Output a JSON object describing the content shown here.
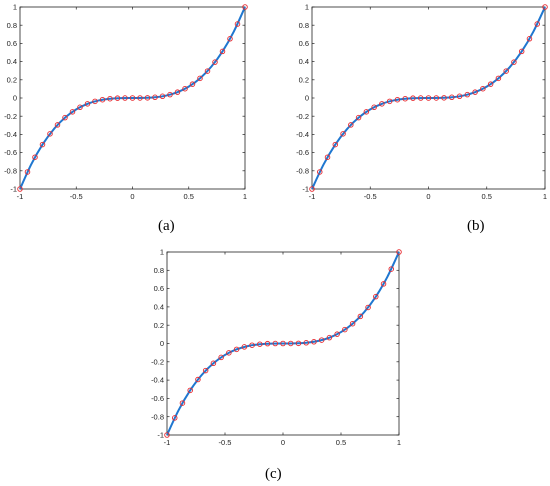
{
  "figure": {
    "panel_labels": [
      "(a)",
      "(b)",
      "(c)"
    ]
  },
  "chart_data": [
    {
      "panel": "(a)",
      "type": "line",
      "title": "",
      "xlabel": "",
      "ylabel": "",
      "xlim": [
        -1,
        1
      ],
      "ylim": [
        -1,
        1
      ],
      "xticks": [
        -1,
        -0.5,
        0,
        0.5,
        1
      ],
      "xtick_labels": [
        "-1",
        "-0.5",
        "0",
        "0.5",
        "1"
      ],
      "yticks": [
        -1,
        -0.8,
        -0.6,
        -0.4,
        -0.2,
        0,
        0.2,
        0.4,
        0.6,
        0.8,
        1
      ],
      "ytick_labels": [
        "-1",
        "-0.8",
        "-0.6",
        "-0.4",
        "-0.2",
        "0",
        "0.2",
        "0.4",
        "0.6",
        "0.8",
        "1"
      ],
      "grid": false,
      "legend": "none",
      "series": [
        {
          "style": "line",
          "color": "#1f77d0",
          "x": [
            -1,
            -0.9,
            -0.8,
            -0.7,
            -0.6,
            -0.5,
            -0.4,
            -0.3,
            -0.2,
            -0.1,
            0,
            0.1,
            0.2,
            0.3,
            0.4,
            0.5,
            0.6,
            0.7,
            0.8,
            0.9,
            1
          ],
          "y": [
            -1,
            -0.729,
            -0.512,
            -0.343,
            -0.216,
            -0.125,
            -0.064,
            -0.027,
            -0.008,
            -0.001,
            0,
            0.001,
            0.008,
            0.027,
            0.064,
            0.125,
            0.216,
            0.343,
            0.512,
            0.729,
            1
          ]
        },
        {
          "style": "markers-circle",
          "color": "#e8282e",
          "x": [
            -1,
            -0.9333,
            -0.8667,
            -0.8,
            -0.7333,
            -0.6667,
            -0.6,
            -0.5333,
            -0.4667,
            -0.4,
            -0.3333,
            -0.2667,
            -0.2,
            -0.1333,
            -0.0667,
            0,
            0.0667,
            0.1333,
            0.2,
            0.2667,
            0.3333,
            0.4,
            0.4667,
            0.5333,
            0.6,
            0.6667,
            0.7333,
            0.8,
            0.8667,
            0.9333,
            1
          ],
          "y": [
            -1,
            -0.813,
            -0.651,
            -0.512,
            -0.394,
            -0.296,
            -0.216,
            -0.152,
            -0.102,
            -0.064,
            -0.037,
            -0.019,
            -0.008,
            -0.002,
            -0.0003,
            0,
            0.0003,
            0.002,
            0.008,
            0.019,
            0.037,
            0.064,
            0.102,
            0.152,
            0.216,
            0.296,
            0.394,
            0.512,
            0.651,
            0.813,
            1
          ]
        }
      ]
    },
    {
      "panel": "(b)",
      "type": "line",
      "title": "",
      "xlabel": "",
      "ylabel": "",
      "xlim": [
        -1,
        1
      ],
      "ylim": [
        -1,
        1
      ],
      "xticks": [
        -1,
        -0.5,
        0,
        0.5,
        1
      ],
      "xtick_labels": [
        "-1",
        "-0.5",
        "0",
        "0.5",
        "1"
      ],
      "yticks": [
        -1,
        -0.8,
        -0.6,
        -0.4,
        -0.2,
        0,
        0.2,
        0.4,
        0.6,
        0.8,
        1
      ],
      "ytick_labels": [
        "-1",
        "-0.8",
        "-0.6",
        "-0.4",
        "-0.2",
        "0",
        "0.2",
        "0.4",
        "0.6",
        "0.8",
        "1"
      ],
      "grid": false,
      "legend": "none",
      "series": [
        {
          "style": "line",
          "color": "#1f77d0",
          "x": [
            -1,
            -0.9,
            -0.8,
            -0.7,
            -0.6,
            -0.5,
            -0.4,
            -0.3,
            -0.2,
            -0.1,
            0,
            0.1,
            0.2,
            0.3,
            0.4,
            0.5,
            0.6,
            0.7,
            0.8,
            0.9,
            1
          ],
          "y": [
            -1,
            -0.729,
            -0.512,
            -0.343,
            -0.216,
            -0.125,
            -0.064,
            -0.027,
            -0.008,
            -0.001,
            0,
            0.001,
            0.008,
            0.027,
            0.064,
            0.125,
            0.216,
            0.343,
            0.512,
            0.729,
            1
          ]
        },
        {
          "style": "markers-circle",
          "color": "#e8282e",
          "x": [
            -1,
            -0.9333,
            -0.8667,
            -0.8,
            -0.7333,
            -0.6667,
            -0.6,
            -0.5333,
            -0.4667,
            -0.4,
            -0.3333,
            -0.2667,
            -0.2,
            -0.1333,
            -0.0667,
            0,
            0.0667,
            0.1333,
            0.2,
            0.2667,
            0.3333,
            0.4,
            0.4667,
            0.5333,
            0.6,
            0.6667,
            0.7333,
            0.8,
            0.8667,
            0.9333,
            1
          ],
          "y": [
            -1,
            -0.813,
            -0.651,
            -0.512,
            -0.394,
            -0.296,
            -0.216,
            -0.152,
            -0.102,
            -0.064,
            -0.037,
            -0.019,
            -0.008,
            -0.002,
            -0.0003,
            0,
            0.0003,
            0.002,
            0.008,
            0.019,
            0.037,
            0.064,
            0.102,
            0.152,
            0.216,
            0.296,
            0.394,
            0.512,
            0.651,
            0.813,
            1
          ]
        }
      ]
    },
    {
      "panel": "(c)",
      "type": "line",
      "title": "",
      "xlabel": "",
      "ylabel": "",
      "xlim": [
        -1,
        1
      ],
      "ylim": [
        -1,
        1
      ],
      "xticks": [
        -1,
        -0.5,
        0,
        0.5,
        1
      ],
      "xtick_labels": [
        "-1",
        "-0.5",
        "0",
        "0.5",
        "1"
      ],
      "yticks": [
        -1,
        -0.8,
        -0.6,
        -0.4,
        -0.2,
        0,
        0.2,
        0.4,
        0.6,
        0.8,
        1
      ],
      "ytick_labels": [
        "-1",
        "-0.8",
        "-0.6",
        "-0.4",
        "-0.2",
        "0",
        "0.2",
        "0.4",
        "0.6",
        "0.8",
        "1"
      ],
      "grid": false,
      "legend": "none",
      "series": [
        {
          "style": "line",
          "color": "#1f77d0",
          "x": [
            -1,
            -0.9,
            -0.8,
            -0.7,
            -0.6,
            -0.5,
            -0.4,
            -0.3,
            -0.2,
            -0.1,
            0,
            0.1,
            0.2,
            0.3,
            0.4,
            0.5,
            0.6,
            0.7,
            0.8,
            0.9,
            1
          ],
          "y": [
            -1,
            -0.729,
            -0.512,
            -0.343,
            -0.216,
            -0.125,
            -0.064,
            -0.027,
            -0.008,
            -0.001,
            0,
            0.001,
            0.008,
            0.027,
            0.064,
            0.125,
            0.216,
            0.343,
            0.512,
            0.729,
            1
          ]
        },
        {
          "style": "markers-circle",
          "color": "#e8282e",
          "x": [
            -1,
            -0.9333,
            -0.8667,
            -0.8,
            -0.7333,
            -0.6667,
            -0.6,
            -0.5333,
            -0.4667,
            -0.4,
            -0.3333,
            -0.2667,
            -0.2,
            -0.1333,
            -0.0667,
            0,
            0.0667,
            0.1333,
            0.2,
            0.2667,
            0.3333,
            0.4,
            0.4667,
            0.5333,
            0.6,
            0.6667,
            0.7333,
            0.8,
            0.8667,
            0.9333,
            1
          ],
          "y": [
            -1,
            -0.813,
            -0.651,
            -0.512,
            -0.394,
            -0.296,
            -0.216,
            -0.152,
            -0.102,
            -0.064,
            -0.037,
            -0.019,
            -0.008,
            -0.002,
            -0.0003,
            0,
            0.0003,
            0.002,
            0.008,
            0.019,
            0.037,
            0.064,
            0.102,
            0.152,
            0.216,
            0.296,
            0.394,
            0.512,
            0.651,
            0.813,
            1
          ]
        }
      ]
    }
  ]
}
